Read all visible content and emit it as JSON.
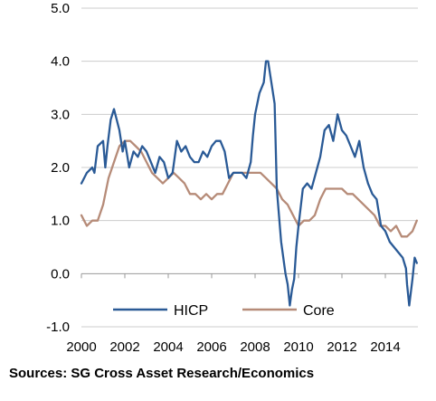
{
  "chart_data": {
    "type": "line",
    "title": "",
    "xlabel": "",
    "ylabel": "",
    "xlim": [
      2000,
      2015.5
    ],
    "ylim": [
      -1.0,
      5.0
    ],
    "yticks": [
      "-1.0",
      "0.0",
      "1.0",
      "2.0",
      "3.0",
      "4.0",
      "5.0"
    ],
    "yticks_values": [
      -1.0,
      0.0,
      1.0,
      2.0,
      3.0,
      4.0,
      5.0
    ],
    "xticks": [
      "2000",
      "2002",
      "2004",
      "2006",
      "2008",
      "2010",
      "2012",
      "2014"
    ],
    "xticks_values": [
      2000,
      2002,
      2004,
      2006,
      2008,
      2010,
      2012,
      2014
    ],
    "grid": "horizontal",
    "legend_position": "bottom",
    "colors": {
      "HICP": "#2a5a96",
      "Core": "#b68b78",
      "grid": "#cccccc",
      "axis": "#999999"
    },
    "series": [
      {
        "name": "HICP",
        "x": [
          2000.0,
          2000.25,
          2000.5,
          2000.6,
          2000.75,
          2001.0,
          2001.1,
          2001.2,
          2001.35,
          2001.5,
          2001.75,
          2001.9,
          2002.0,
          2002.2,
          2002.4,
          2002.6,
          2002.8,
          2003.0,
          2003.2,
          2003.4,
          2003.6,
          2003.8,
          2004.0,
          2004.2,
          2004.4,
          2004.6,
          2004.8,
          2005.0,
          2005.2,
          2005.4,
          2005.6,
          2005.8,
          2006.0,
          2006.2,
          2006.4,
          2006.6,
          2006.8,
          2007.0,
          2007.2,
          2007.4,
          2007.6,
          2007.8,
          2007.9,
          2008.0,
          2008.2,
          2008.4,
          2008.5,
          2008.6,
          2008.75,
          2008.9,
          2009.0,
          2009.2,
          2009.4,
          2009.5,
          2009.6,
          2009.7,
          2009.8,
          2009.9,
          2010.0,
          2010.2,
          2010.4,
          2010.6,
          2010.8,
          2011.0,
          2011.2,
          2011.4,
          2011.6,
          2011.8,
          2012.0,
          2012.2,
          2012.4,
          2012.6,
          2012.8,
          2013.0,
          2013.2,
          2013.4,
          2013.6,
          2013.8,
          2014.0,
          2014.2,
          2014.4,
          2014.6,
          2014.8,
          2014.95,
          2015.0,
          2015.1,
          2015.25,
          2015.35,
          2015.45
        ],
        "values": [
          1.7,
          1.9,
          2.0,
          1.9,
          2.4,
          2.5,
          2.0,
          2.4,
          2.9,
          3.1,
          2.7,
          2.3,
          2.5,
          2.0,
          2.3,
          2.2,
          2.4,
          2.3,
          2.1,
          1.9,
          2.2,
          2.1,
          1.8,
          1.9,
          2.5,
          2.3,
          2.4,
          2.2,
          2.1,
          2.1,
          2.3,
          2.2,
          2.4,
          2.5,
          2.5,
          2.3,
          1.8,
          1.9,
          1.9,
          1.9,
          1.8,
          2.1,
          2.6,
          3.0,
          3.4,
          3.6,
          4.0,
          4.0,
          3.6,
          3.2,
          1.6,
          0.6,
          0.0,
          -0.2,
          -0.6,
          -0.3,
          -0.1,
          0.5,
          0.9,
          1.6,
          1.7,
          1.6,
          1.9,
          2.2,
          2.7,
          2.8,
          2.5,
          3.0,
          2.7,
          2.6,
          2.4,
          2.2,
          2.5,
          2.0,
          1.7,
          1.5,
          1.4,
          0.9,
          0.8,
          0.6,
          0.5,
          0.4,
          0.3,
          0.1,
          -0.2,
          -0.6,
          -0.1,
          0.3,
          0.2
        ]
      },
      {
        "name": "Core",
        "x": [
          2000.0,
          2000.25,
          2000.5,
          2000.75,
          2001.0,
          2001.25,
          2001.5,
          2001.75,
          2002.0,
          2002.25,
          2002.5,
          2002.75,
          2003.0,
          2003.25,
          2003.5,
          2003.75,
          2004.0,
          2004.25,
          2004.5,
          2004.75,
          2005.0,
          2005.25,
          2005.5,
          2005.75,
          2006.0,
          2006.25,
          2006.5,
          2006.75,
          2007.0,
          2007.25,
          2007.5,
          2007.75,
          2008.0,
          2008.25,
          2008.5,
          2008.75,
          2009.0,
          2009.25,
          2009.5,
          2009.75,
          2010.0,
          2010.25,
          2010.5,
          2010.75,
          2011.0,
          2011.25,
          2011.5,
          2011.75,
          2012.0,
          2012.25,
          2012.5,
          2012.75,
          2013.0,
          2013.25,
          2013.5,
          2013.75,
          2014.0,
          2014.25,
          2014.5,
          2014.75,
          2015.0,
          2015.25,
          2015.45
        ],
        "values": [
          1.1,
          0.9,
          1.0,
          1.0,
          1.3,
          1.8,
          2.1,
          2.4,
          2.5,
          2.5,
          2.4,
          2.3,
          2.1,
          1.9,
          1.8,
          1.7,
          1.8,
          1.9,
          1.8,
          1.7,
          1.5,
          1.5,
          1.4,
          1.5,
          1.4,
          1.5,
          1.5,
          1.7,
          1.9,
          1.9,
          1.9,
          1.9,
          1.9,
          1.9,
          1.8,
          1.7,
          1.6,
          1.4,
          1.3,
          1.1,
          0.9,
          1.0,
          1.0,
          1.1,
          1.4,
          1.6,
          1.6,
          1.6,
          1.6,
          1.5,
          1.5,
          1.4,
          1.3,
          1.2,
          1.1,
          0.9,
          0.9,
          0.8,
          0.9,
          0.7,
          0.7,
          0.8,
          1.0
        ]
      }
    ],
    "source_note": "Sources: SG Cross Asset Research/Economics"
  }
}
